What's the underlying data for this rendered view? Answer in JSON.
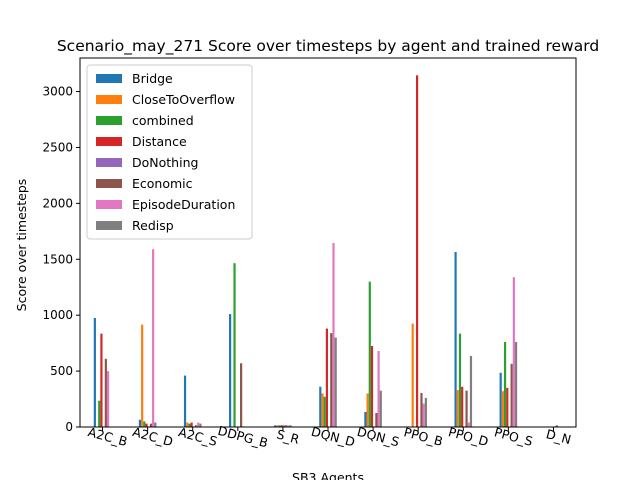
{
  "chart_data": {
    "type": "bar",
    "title": "Scenario_may_271 Score over timesteps by agent and trained reward",
    "xlabel": "SB3 Agents",
    "ylabel": "Score over timesteps",
    "categories": [
      "A2C_B",
      "A2C_D",
      "A2C_S",
      "DDPG_B",
      "S_R",
      "DQN_D",
      "DQN_S",
      "PPO_B",
      "PPO_D",
      "PPO_S",
      "D_N"
    ],
    "ylim": [
      0,
      3300
    ],
    "yticks": [
      0,
      500,
      1000,
      1500,
      2000,
      2500,
      3000
    ],
    "legend_position": "top-left",
    "grid": false,
    "series": [
      {
        "name": "Bridge",
        "color": "#1f77b4",
        "values": [
          975,
          65,
          460,
          1010,
          15,
          360,
          135,
          0,
          1565,
          485,
          0
        ]
      },
      {
        "name": "CloseToOverflow",
        "color": "#ff7f0e",
        "values": [
          0,
          915,
          40,
          0,
          15,
          300,
          300,
          925,
          330,
          320,
          0
        ]
      },
      {
        "name": "combined",
        "color": "#2ca02c",
        "values": [
          235,
          50,
          30,
          1465,
          15,
          270,
          1300,
          0,
          835,
          760,
          0
        ]
      },
      {
        "name": "Distance",
        "color": "#d62728",
        "values": [
          835,
          30,
          40,
          0,
          15,
          880,
          725,
          3145,
          360,
          350,
          0
        ]
      },
      {
        "name": "DoNothing",
        "color": "#9467bd",
        "values": [
          0,
          0,
          0,
          0,
          15,
          0,
          0,
          0,
          0,
          0,
          0
        ]
      },
      {
        "name": "Economic",
        "color": "#8c564b",
        "values": [
          610,
          30,
          15,
          570,
          15,
          840,
          125,
          305,
          325,
          565,
          15
        ]
      },
      {
        "name": "EpisodeDuration",
        "color": "#e377c2",
        "values": [
          500,
          1590,
          40,
          0,
          15,
          1645,
          680,
          210,
          40,
          1340,
          0
        ]
      },
      {
        "name": "Redisp",
        "color": "#7f7f7f",
        "values": [
          0,
          40,
          30,
          0,
          15,
          800,
          325,
          260,
          635,
          760,
          0
        ]
      }
    ]
  }
}
